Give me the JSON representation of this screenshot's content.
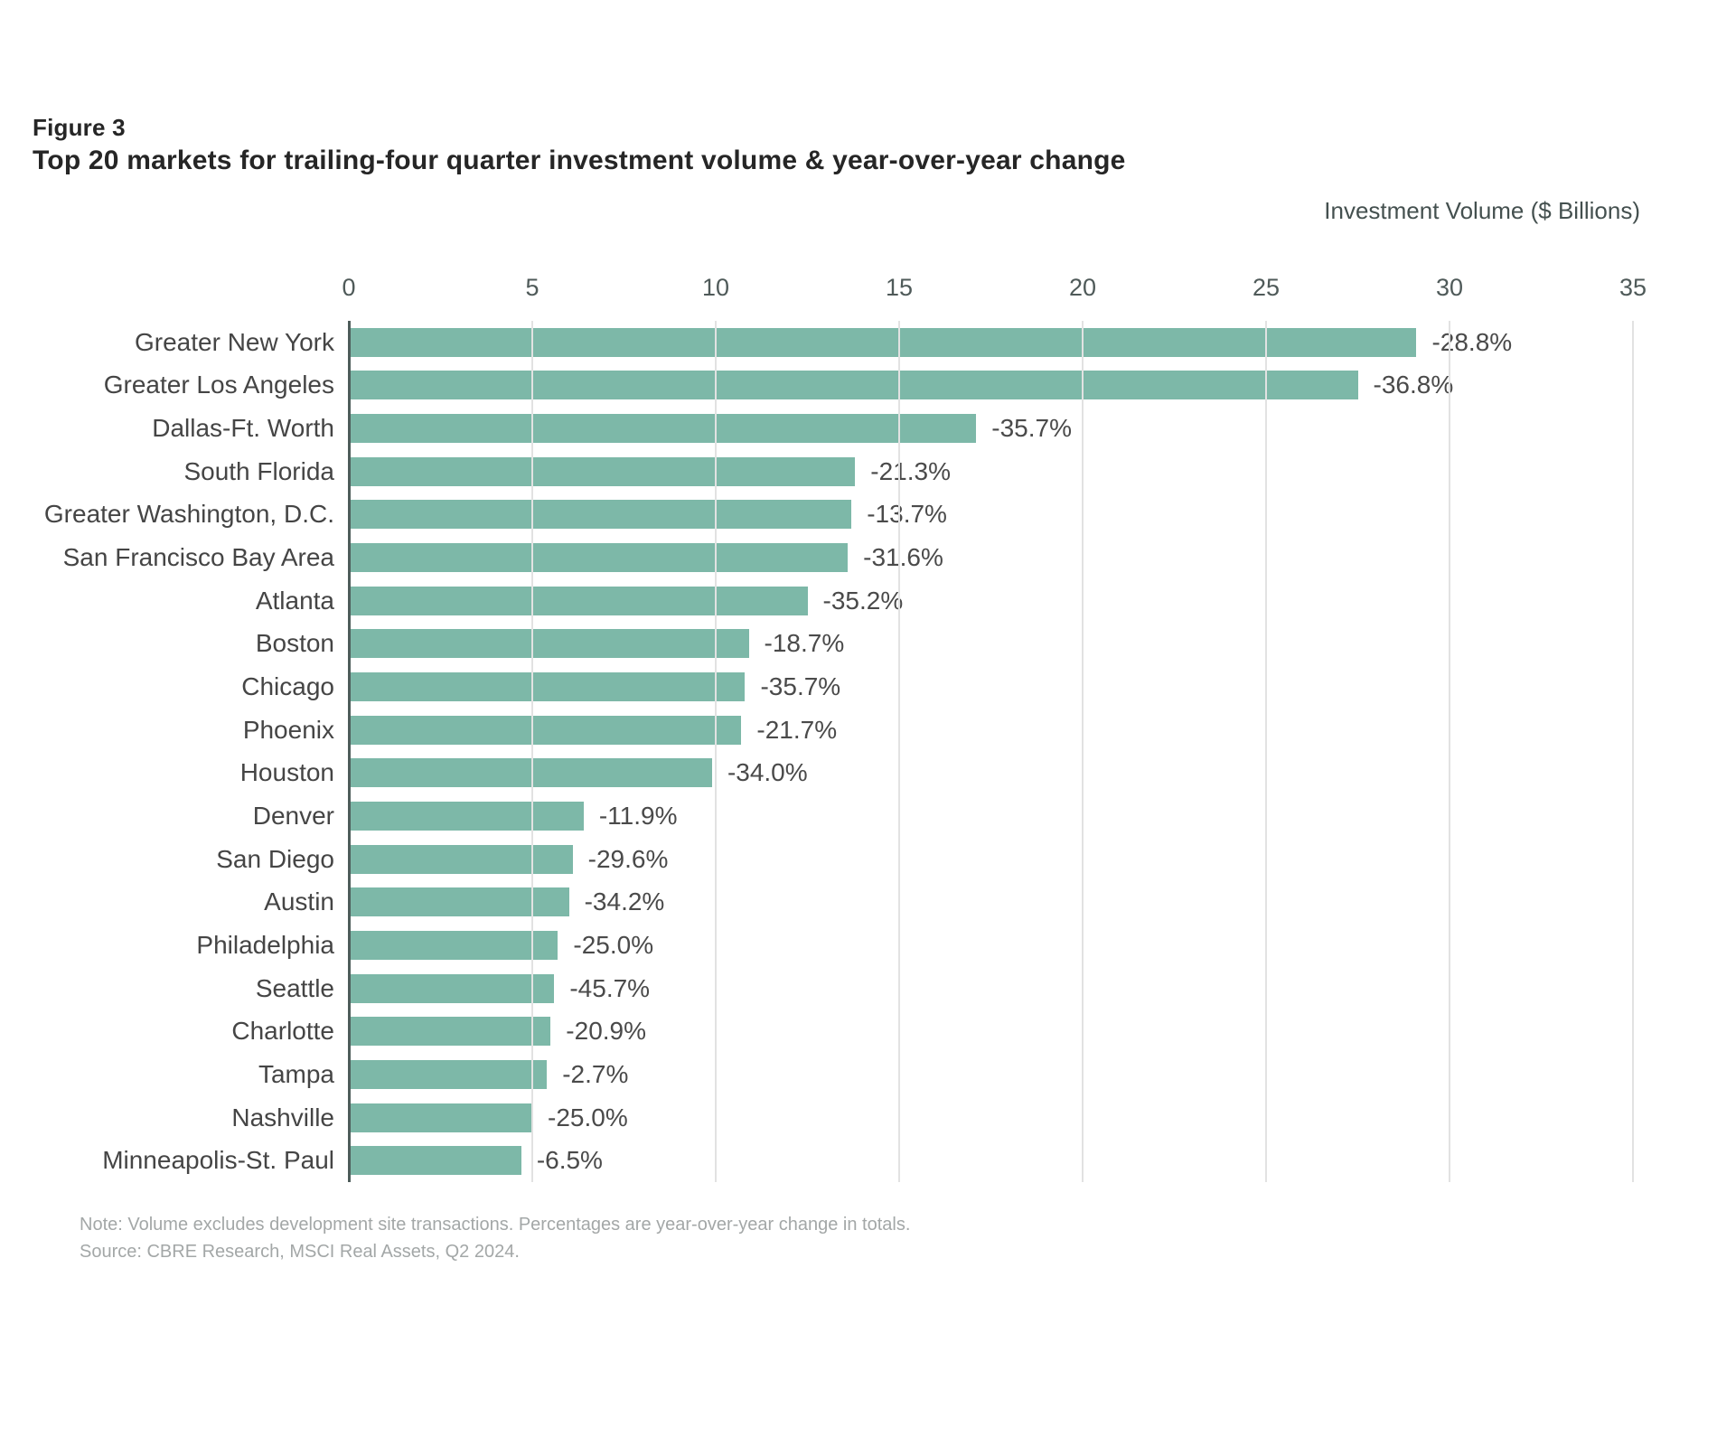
{
  "figure": {
    "label": "Figure 3",
    "title": "Top 20 markets for trailing-four quarter investment volume & year-over-year change"
  },
  "chart_data": {
    "type": "bar",
    "orientation": "horizontal",
    "axis_title": "Investment Volume ($ Billions)",
    "xlim": [
      0,
      35
    ],
    "x_ticks": [
      0,
      5,
      10,
      15,
      20,
      25,
      30,
      35
    ],
    "grid": true,
    "bar_color": "#7db8a8",
    "categories": [
      "Greater New York",
      "Greater Los Angeles",
      "Dallas-Ft. Worth",
      "South Florida",
      "Greater Washington, D.C.",
      "San Francisco Bay Area",
      "Atlanta",
      "Boston",
      "Chicago",
      "Phoenix",
      "Houston",
      "Denver",
      "San Diego",
      "Austin",
      "Philadelphia",
      "Seattle",
      "Charlotte",
      "Tampa",
      "Nashville",
      "Minneapolis-St. Paul"
    ],
    "values": [
      29.1,
      27.5,
      17.1,
      13.8,
      13.7,
      13.6,
      12.5,
      10.9,
      10.8,
      10.7,
      9.9,
      6.4,
      6.1,
      6.0,
      5.7,
      5.6,
      5.5,
      5.4,
      5.0,
      4.7
    ],
    "bar_labels": [
      "-28.8%",
      "-36.8%",
      "-35.7%",
      "-21.3%",
      "-13.7%",
      "-31.6%",
      "-35.2%",
      "-18.7%",
      "-35.7%",
      "-21.7%",
      "-34.0%",
      "-11.9%",
      "-29.6%",
      "-34.2%",
      "-25.0%",
      "-45.7%",
      "-20.9%",
      "-2.7%",
      "-25.0%",
      "-6.5%"
    ]
  },
  "notes": {
    "note": "Note: Volume excludes development site transactions. Percentages are year-over-year change in totals.",
    "source": "Source: CBRE Research, MSCI Real Assets, Q2 2024."
  }
}
